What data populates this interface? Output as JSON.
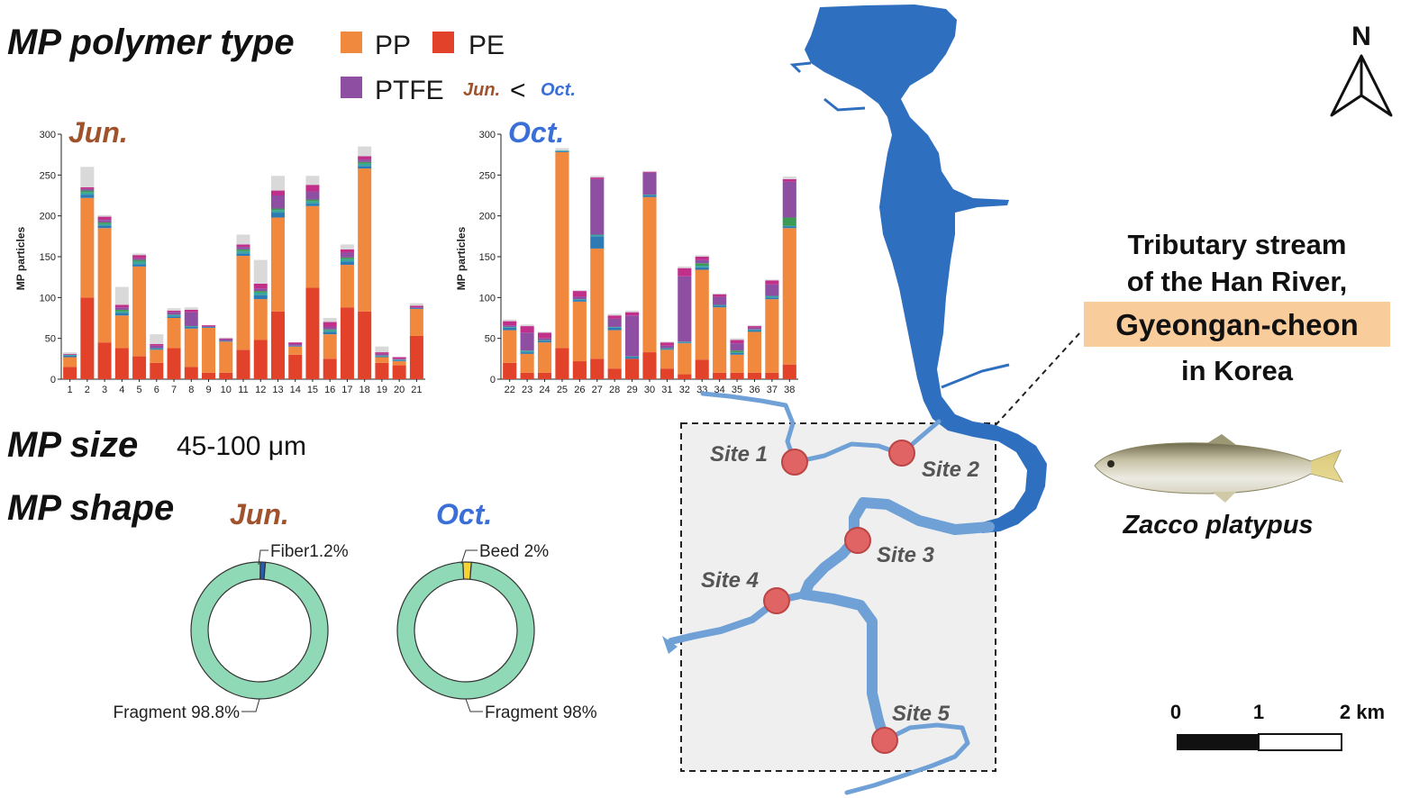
{
  "headings": {
    "polymer_type": "MP polymer type",
    "size": "MP size",
    "size_value": "45-100 μm",
    "shape": "MP shape"
  },
  "legend": {
    "pp": "PP",
    "pe": "PE",
    "ptfe": "PTFE",
    "compare_jun": "Jun.",
    "compare_op": "<",
    "compare_oct": "Oct."
  },
  "colors": {
    "pe": "#e2412a",
    "pp": "#f0893e",
    "ptfe": "#8e4fa3",
    "blue": "#2e7ab5",
    "teal": "#3aa6a0",
    "green": "#3c9a55",
    "magenta": "#c0308a",
    "gray": "#d9d9d9",
    "fragment": "#8fd9b6",
    "fiber": "#2a5db0",
    "bead": "#f5d431",
    "river_main": "#2e6fc0",
    "river_trib": "#6fa0d6",
    "site": "#e06464",
    "jun_label": "#a0522d",
    "oct_label": "#3a6fd8"
  },
  "chart_data": [
    {
      "type": "bar",
      "stacked": true,
      "title": "Jun.",
      "ylabel": "MP particles",
      "xlabel": "",
      "ylim": [
        0,
        300
      ],
      "yticks": [
        0,
        50,
        100,
        150,
        200,
        250,
        300
      ],
      "categories": [
        "1",
        "2",
        "3",
        "4",
        "5",
        "6",
        "7",
        "8",
        "9",
        "10",
        "11",
        "12",
        "13",
        "14",
        "15",
        "16",
        "17",
        "18",
        "19",
        "20",
        "21"
      ],
      "series": [
        {
          "color_key": "pe",
          "values": [
            15,
            100,
            45,
            38,
            28,
            20,
            38,
            15,
            8,
            8,
            36,
            48,
            83,
            30,
            112,
            25,
            88,
            83,
            20,
            17,
            53
          ]
        },
        {
          "color_key": "pp",
          "values": [
            12,
            122,
            140,
            40,
            110,
            16,
            37,
            47,
            55,
            38,
            115,
            50,
            115,
            10,
            100,
            30,
            52,
            175,
            7,
            5,
            33
          ]
        },
        {
          "color_key": "blue",
          "values": [
            2,
            4,
            3,
            3,
            3,
            1,
            2,
            2,
            1,
            1,
            3,
            5,
            6,
            1,
            3,
            3,
            4,
            3,
            1,
            1,
            1
          ]
        },
        {
          "color_key": "teal",
          "values": [
            1,
            3,
            2,
            2,
            3,
            1,
            2,
            1,
            0,
            0,
            3,
            3,
            3,
            0,
            3,
            2,
            3,
            3,
            1,
            1,
            0
          ]
        },
        {
          "color_key": "green",
          "values": [
            0,
            2,
            2,
            2,
            2,
            0,
            0,
            0,
            0,
            0,
            2,
            2,
            2,
            0,
            2,
            1,
            2,
            2,
            0,
            0,
            0
          ]
        },
        {
          "color_key": "ptfe",
          "values": [
            0,
            2,
            3,
            3,
            2,
            3,
            3,
            17,
            1,
            2,
            3,
            3,
            16,
            2,
            10,
            3,
            6,
            3,
            2,
            1,
            1
          ]
        },
        {
          "color_key": "magenta",
          "values": [
            1,
            2,
            4,
            3,
            4,
            2,
            2,
            3,
            1,
            1,
            3,
            6,
            6,
            2,
            8,
            6,
            4,
            4,
            2,
            2,
            2
          ]
        },
        {
          "color_key": "gray",
          "values": [
            2,
            25,
            2,
            22,
            2,
            12,
            3,
            3,
            0,
            1,
            12,
            29,
            18,
            0,
            11,
            5,
            6,
            12,
            7,
            0,
            3
          ]
        }
      ]
    },
    {
      "type": "bar",
      "stacked": true,
      "title": "Oct.",
      "ylabel": "MP particles",
      "xlabel": "",
      "ylim": [
        0,
        300
      ],
      "yticks": [
        0,
        50,
        100,
        150,
        200,
        250,
        300
      ],
      "categories": [
        "22",
        "23",
        "24",
        "25",
        "26",
        "27",
        "28",
        "29",
        "30",
        "31",
        "32",
        "33",
        "34",
        "35",
        "36",
        "37",
        "38"
      ],
      "series": [
        {
          "color_key": "pe",
          "values": [
            20,
            8,
            8,
            38,
            22,
            25,
            13,
            25,
            33,
            13,
            6,
            24,
            8,
            8,
            8,
            8,
            18
          ]
        },
        {
          "color_key": "pp",
          "values": [
            40,
            23,
            37,
            240,
            73,
            135,
            47,
            0,
            190,
            23,
            38,
            110,
            80,
            22,
            50,
            90,
            167
          ]
        },
        {
          "color_key": "blue",
          "values": [
            3,
            2,
            2,
            1,
            2,
            15,
            3,
            2,
            2,
            1,
            1,
            3,
            2,
            2,
            2,
            2,
            2
          ]
        },
        {
          "color_key": "teal",
          "values": [
            1,
            2,
            1,
            1,
            1,
            2,
            1,
            1,
            1,
            1,
            1,
            2,
            1,
            1,
            1,
            2,
            1
          ]
        },
        {
          "color_key": "green",
          "values": [
            0,
            0,
            0,
            0,
            0,
            0,
            0,
            0,
            0,
            0,
            0,
            3,
            0,
            2,
            0,
            0,
            10
          ]
        },
        {
          "color_key": "ptfe",
          "values": [
            2,
            22,
            2,
            0,
            3,
            68,
            10,
            50,
            27,
            3,
            80,
            4,
            10,
            9,
            2,
            14,
            44
          ]
        },
        {
          "color_key": "magenta",
          "values": [
            5,
            8,
            7,
            0,
            7,
            2,
            4,
            4,
            1,
            4,
            10,
            4,
            3,
            4,
            2,
            5,
            3
          ]
        },
        {
          "color_key": "gray",
          "values": [
            2,
            2,
            1,
            3,
            1,
            2,
            2,
            2,
            1,
            1,
            2,
            2,
            1,
            2,
            1,
            1,
            3
          ]
        }
      ]
    },
    {
      "type": "pie",
      "donut": true,
      "title": "Jun.",
      "slices": [
        {
          "label": "Fragment 98.8%",
          "value": 98.8,
          "color_key": "fragment"
        },
        {
          "label": "Fiber1.2%",
          "value": 1.2,
          "color_key": "fiber"
        }
      ]
    },
    {
      "type": "pie",
      "donut": true,
      "title": "Oct.",
      "slices": [
        {
          "label": "Fragment 98%",
          "value": 98,
          "color_key": "fragment"
        },
        {
          "label": "Beed 2%",
          "value": 2,
          "color_key": "bead"
        }
      ]
    }
  ],
  "map": {
    "north": "N",
    "sites": [
      "Site 1",
      "Site 2",
      "Site 3",
      "Site 4",
      "Site 5"
    ],
    "scale_labels": [
      "0",
      "1",
      "2 km"
    ]
  },
  "info": {
    "line1": "Tributary stream",
    "line2": "of the Han River,",
    "highlight": "Gyeongan-cheon",
    "line3": "in Korea",
    "species": "Zacco platypus",
    "highlight_color": "#f9cc9c"
  }
}
